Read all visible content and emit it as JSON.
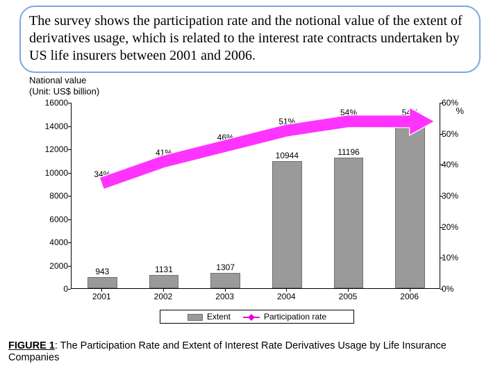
{
  "callout_text": "The survey shows the participation rate and the notional value of the extent of derivatives usage, which is related to the interest rate contracts undertaken by US life insurers between 2001 and 2006.",
  "chart": {
    "type": "bar+line",
    "y_axis": {
      "title_line1": "National value",
      "title_line2": "(Unit: US$ billion)",
      "min": 0,
      "max": 16000,
      "step": 2000,
      "label_fontsize": 12
    },
    "y2_axis": {
      "title": "%",
      "min": 0,
      "max": 60,
      "step": 10,
      "label_fontsize": 12
    },
    "categories": [
      "2001",
      "2002",
      "2003",
      "2004",
      "2005",
      "2006"
    ],
    "bars": {
      "label": "Extent",
      "values": [
        943,
        1131,
        1307,
        10944,
        11196,
        14075
      ],
      "color": "#9a9a9a",
      "border_color": "#707070",
      "bar_width_frac": 0.48
    },
    "line": {
      "label": "Participation rate",
      "values_pct": [
        34,
        41,
        46,
        51,
        54,
        54
      ],
      "color": "#e600e0",
      "arrow_color": "#ff33ff",
      "arrow_stroke": "#ffffff"
    },
    "background_color": "#ffffff",
    "axis_color": "#000000",
    "font_family": "Arial"
  },
  "legend": {
    "item1": "Extent",
    "item2": "Participation rate"
  },
  "caption": {
    "prefix": "FIGURE 1",
    "text": ": The Participation Rate and Extent of Interest Rate Derivatives Usage by Life Insurance Companies"
  }
}
